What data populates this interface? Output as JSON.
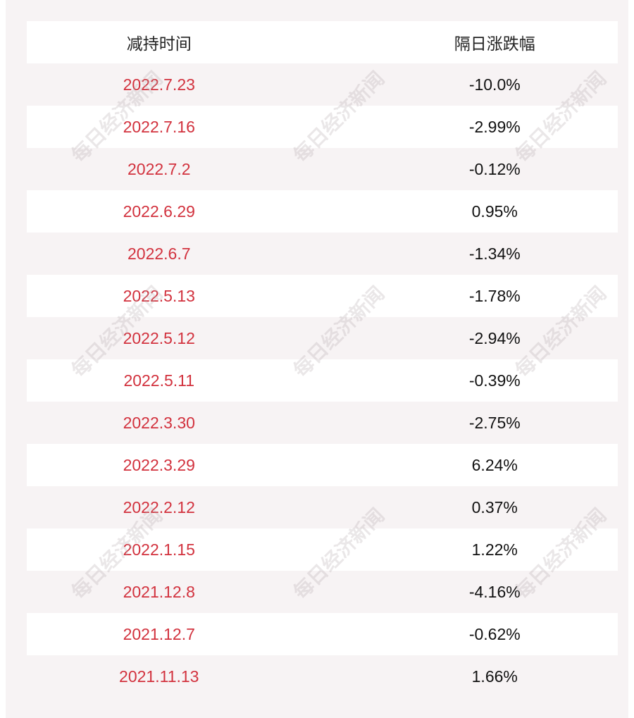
{
  "table": {
    "header": [
      "减持时间",
      "隔日涨跌幅"
    ],
    "rows": [
      [
        "2022.7.23",
        "-10.0%"
      ],
      [
        "2022.7.16",
        "-2.99%"
      ],
      [
        "2022.7.2",
        "-0.12%"
      ],
      [
        "2022.6.29",
        "0.95%"
      ],
      [
        "2022.6.7",
        "-1.34%"
      ],
      [
        "2022.5.13",
        "-1.78%"
      ],
      [
        "2022.5.12",
        "-2.94%"
      ],
      [
        "2022.5.11",
        "-0.39%"
      ],
      [
        "2022.3.30",
        "-2.75%"
      ],
      [
        "2022.3.29",
        "6.24%"
      ],
      [
        "2022.2.12",
        "0.37%"
      ],
      [
        "2022.1.15",
        "1.22%"
      ],
      [
        "2021.12.8",
        "-4.16%"
      ],
      [
        "2021.12.7",
        "-0.62%"
      ],
      [
        "2021.11.13",
        "1.66%"
      ]
    ]
  },
  "watermark": "每日经济新闻"
}
